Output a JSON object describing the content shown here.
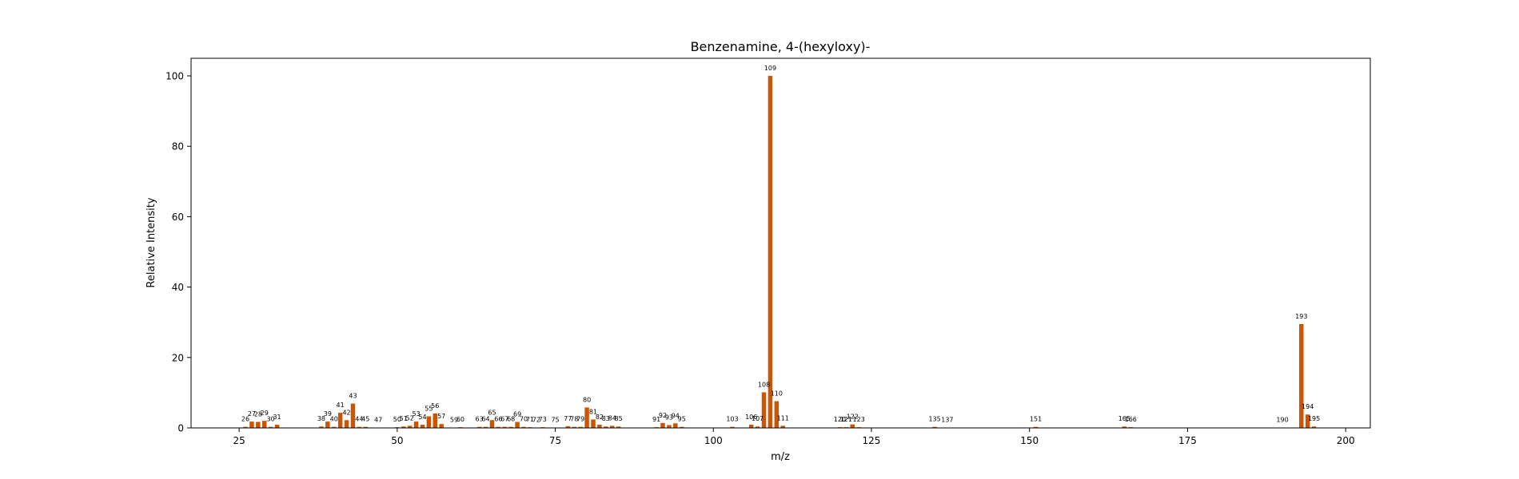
{
  "chart_data": {
    "type": "bar",
    "title": "Benzenamine, 4-(hexyloxy)-",
    "xlabel": "m/z",
    "ylabel": "Relative Intensity",
    "xlim": [
      17.4,
      203.9
    ],
    "ylim": [
      0,
      105
    ],
    "xticks": [
      25,
      50,
      75,
      100,
      125,
      150,
      175,
      200
    ],
    "yticks": [
      0,
      20,
      40,
      60,
      80,
      100
    ],
    "grid": false,
    "bar_color": "#cc5500",
    "peaks": [
      {
        "mz": 26,
        "intensity": 0.3
      },
      {
        "mz": 27,
        "intensity": 1.8
      },
      {
        "mz": 28,
        "intensity": 1.7
      },
      {
        "mz": 29,
        "intensity": 2.0
      },
      {
        "mz": 30,
        "intensity": 0.3
      },
      {
        "mz": 31,
        "intensity": 0.9
      },
      {
        "mz": 38,
        "intensity": 0.4
      },
      {
        "mz": 39,
        "intensity": 1.8
      },
      {
        "mz": 40,
        "intensity": 0.3
      },
      {
        "mz": 41,
        "intensity": 4.3
      },
      {
        "mz": 42,
        "intensity": 2.2
      },
      {
        "mz": 43,
        "intensity": 6.9
      },
      {
        "mz": 44,
        "intensity": 0.3
      },
      {
        "mz": 45,
        "intensity": 0.3
      },
      {
        "mz": 47,
        "intensity": 0.1
      },
      {
        "mz": 50,
        "intensity": 0.2
      },
      {
        "mz": 51,
        "intensity": 0.4
      },
      {
        "mz": 52,
        "intensity": 0.6
      },
      {
        "mz": 53,
        "intensity": 1.8
      },
      {
        "mz": 54,
        "intensity": 0.9
      },
      {
        "mz": 55,
        "intensity": 3.3
      },
      {
        "mz": 56,
        "intensity": 4.1
      },
      {
        "mz": 57,
        "intensity": 1.1
      },
      {
        "mz": 59,
        "intensity": 0.1
      },
      {
        "mz": 60,
        "intensity": 0.2
      },
      {
        "mz": 63,
        "intensity": 0.3
      },
      {
        "mz": 64,
        "intensity": 0.3
      },
      {
        "mz": 65,
        "intensity": 2.2
      },
      {
        "mz": 66,
        "intensity": 0.3
      },
      {
        "mz": 67,
        "intensity": 0.3
      },
      {
        "mz": 68,
        "intensity": 0.3
      },
      {
        "mz": 69,
        "intensity": 1.7
      },
      {
        "mz": 70,
        "intensity": 0.3
      },
      {
        "mz": 71,
        "intensity": 0.2
      },
      {
        "mz": 72,
        "intensity": 0.1
      },
      {
        "mz": 73,
        "intensity": 0.2
      },
      {
        "mz": 75,
        "intensity": 0.1
      },
      {
        "mz": 77,
        "intensity": 0.5
      },
      {
        "mz": 78,
        "intensity": 0.3
      },
      {
        "mz": 79,
        "intensity": 0.3
      },
      {
        "mz": 80,
        "intensity": 5.8
      },
      {
        "mz": 81,
        "intensity": 2.4
      },
      {
        "mz": 82,
        "intensity": 0.9
      },
      {
        "mz": 83,
        "intensity": 0.4
      },
      {
        "mz": 84,
        "intensity": 0.6
      },
      {
        "mz": 85,
        "intensity": 0.4
      },
      {
        "mz": 91,
        "intensity": 0.2
      },
      {
        "mz": 92,
        "intensity": 1.4
      },
      {
        "mz": 93,
        "intensity": 0.8
      },
      {
        "mz": 94,
        "intensity": 1.3
      },
      {
        "mz": 95,
        "intensity": 0.3
      },
      {
        "mz": 103,
        "intensity": 0.3
      },
      {
        "mz": 106,
        "intensity": 0.9
      },
      {
        "mz": 107,
        "intensity": 0.4
      },
      {
        "mz": 108,
        "intensity": 10.1
      },
      {
        "mz": 109,
        "intensity": 100.0
      },
      {
        "mz": 110,
        "intensity": 7.6
      },
      {
        "mz": 111,
        "intensity": 0.6
      },
      {
        "mz": 120,
        "intensity": 0.2
      },
      {
        "mz": 121,
        "intensity": 0.2
      },
      {
        "mz": 122,
        "intensity": 1.0
      },
      {
        "mz": 123,
        "intensity": 0.2
      },
      {
        "mz": 135,
        "intensity": 0.3
      },
      {
        "mz": 137,
        "intensity": 0.1
      },
      {
        "mz": 151,
        "intensity": 0.3
      },
      {
        "mz": 165,
        "intensity": 0.4
      },
      {
        "mz": 166,
        "intensity": 0.2
      },
      {
        "mz": 190,
        "intensity": 0.1
      },
      {
        "mz": 193,
        "intensity": 29.5
      },
      {
        "mz": 194,
        "intensity": 3.8
      },
      {
        "mz": 195,
        "intensity": 0.4
      }
    ]
  }
}
